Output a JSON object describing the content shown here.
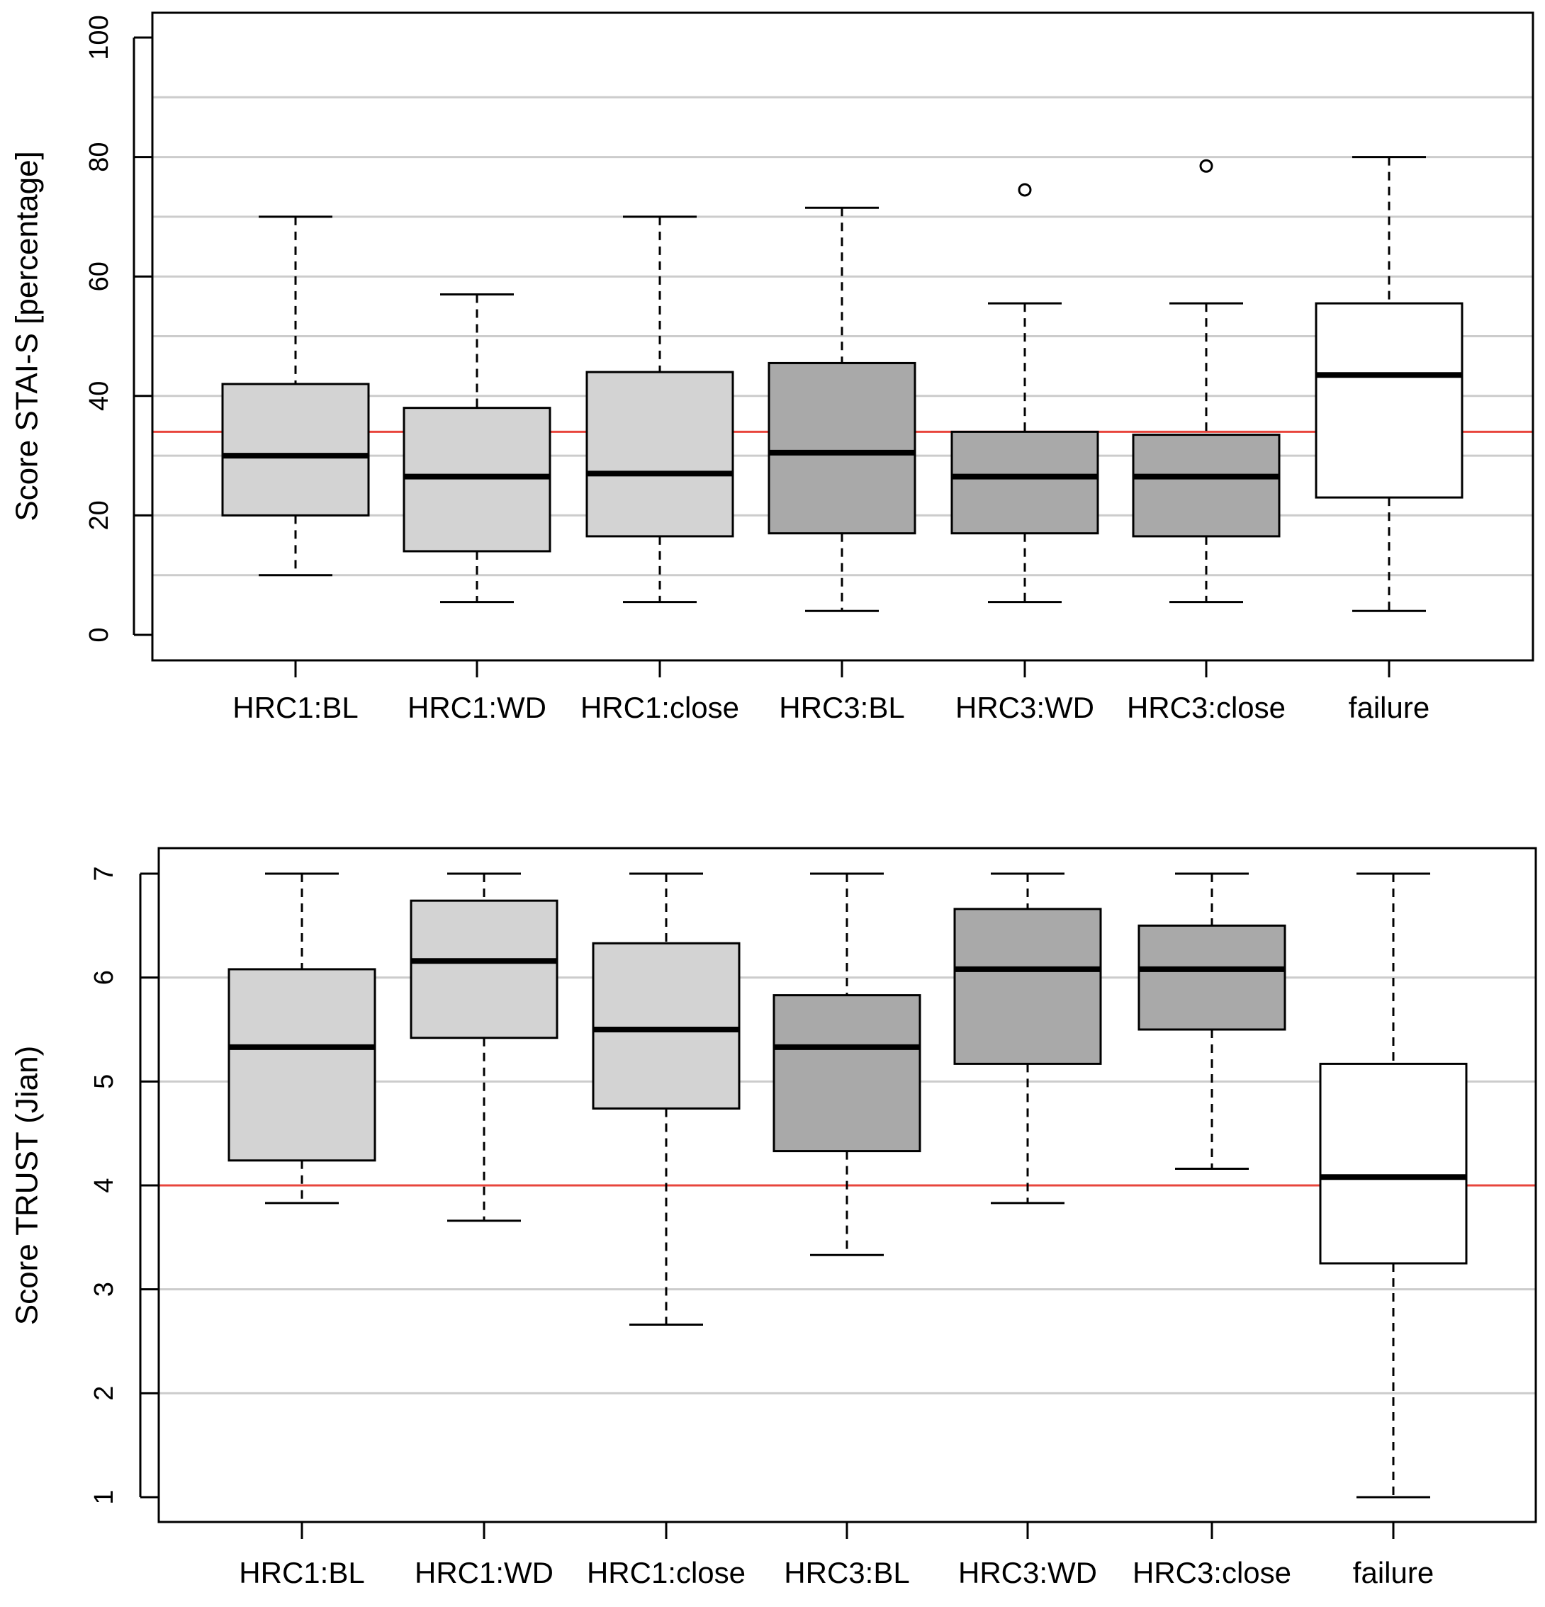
{
  "chart_data": [
    {
      "type": "box",
      "ylabel": "Score STAI-S [percentage]",
      "ylim": [
        0,
        100
      ],
      "yticks": [
        0,
        20,
        40,
        60,
        80,
        100
      ],
      "gridlines": [
        10,
        20,
        30,
        40,
        50,
        60,
        70,
        80,
        90
      ],
      "reference_line": 34,
      "categories": [
        "HRC1:BL",
        "HRC1:WD",
        "HRC1:close",
        "HRC3:BL",
        "HRC3:WD",
        "HRC3:close",
        "failure"
      ],
      "boxes": [
        {
          "min": 10,
          "q1": 20,
          "median": 30,
          "q3": 42,
          "max": 70,
          "outliers": [],
          "fill": "#d3d3d3"
        },
        {
          "min": 5.5,
          "q1": 14,
          "median": 26.5,
          "q3": 38,
          "max": 57,
          "outliers": [],
          "fill": "#d3d3d3"
        },
        {
          "min": 5.5,
          "q1": 16.5,
          "median": 27,
          "q3": 44,
          "max": 70,
          "outliers": [],
          "fill": "#d3d3d3"
        },
        {
          "min": 4,
          "q1": 17,
          "median": 30.5,
          "q3": 45.5,
          "max": 71.5,
          "outliers": [],
          "fill": "#a9a9a9"
        },
        {
          "min": 5.5,
          "q1": 17,
          "median": 26.5,
          "q3": 34,
          "max": 55.5,
          "outliers": [
            74.5
          ],
          "fill": "#a9a9a9"
        },
        {
          "min": 5.5,
          "q1": 16.5,
          "median": 26.5,
          "q3": 33.5,
          "max": 55.5,
          "outliers": [
            78.5
          ],
          "fill": "#a9a9a9"
        },
        {
          "min": 4,
          "q1": 23,
          "median": 43.5,
          "q3": 55.5,
          "max": 80,
          "outliers": [],
          "fill": "#ffffff"
        }
      ]
    },
    {
      "type": "box",
      "ylabel": "Score TRUST (Jian)",
      "ylim": [
        1,
        7
      ],
      "yticks": [
        1,
        2,
        3,
        4,
        5,
        6,
        7
      ],
      "gridlines": [
        2,
        3,
        5,
        6
      ],
      "reference_line": 4,
      "categories": [
        "HRC1:BL",
        "HRC1:WD",
        "HRC1:close",
        "HRC3:BL",
        "HRC3:WD",
        "HRC3:close",
        "failure"
      ],
      "boxes": [
        {
          "min": 3.83,
          "q1": 4.24,
          "median": 5.33,
          "q3": 6.08,
          "max": 7,
          "outliers": [],
          "fill": "#d3d3d3"
        },
        {
          "min": 3.66,
          "q1": 5.42,
          "median": 6.16,
          "q3": 6.74,
          "max": 7,
          "outliers": [],
          "fill": "#d3d3d3"
        },
        {
          "min": 2.66,
          "q1": 4.74,
          "median": 5.5,
          "q3": 6.33,
          "max": 7,
          "outliers": [],
          "fill": "#d3d3d3"
        },
        {
          "min": 3.33,
          "q1": 4.33,
          "median": 5.33,
          "q3": 5.83,
          "max": 7,
          "outliers": [],
          "fill": "#a9a9a9"
        },
        {
          "min": 3.83,
          "q1": 5.17,
          "median": 6.08,
          "q3": 6.66,
          "max": 7,
          "outliers": [],
          "fill": "#a9a9a9"
        },
        {
          "min": 4.16,
          "q1": 5.5,
          "median": 6.08,
          "q3": 6.5,
          "max": 7,
          "outliers": [],
          "fill": "#a9a9a9"
        },
        {
          "min": 1,
          "q1": 3.25,
          "median": 4.08,
          "q3": 5.17,
          "max": 7,
          "outliers": [],
          "fill": "#ffffff"
        }
      ]
    }
  ],
  "colors": {
    "reference_line": "#e8453c",
    "grid": "#cccccc",
    "axis": "#000000"
  }
}
